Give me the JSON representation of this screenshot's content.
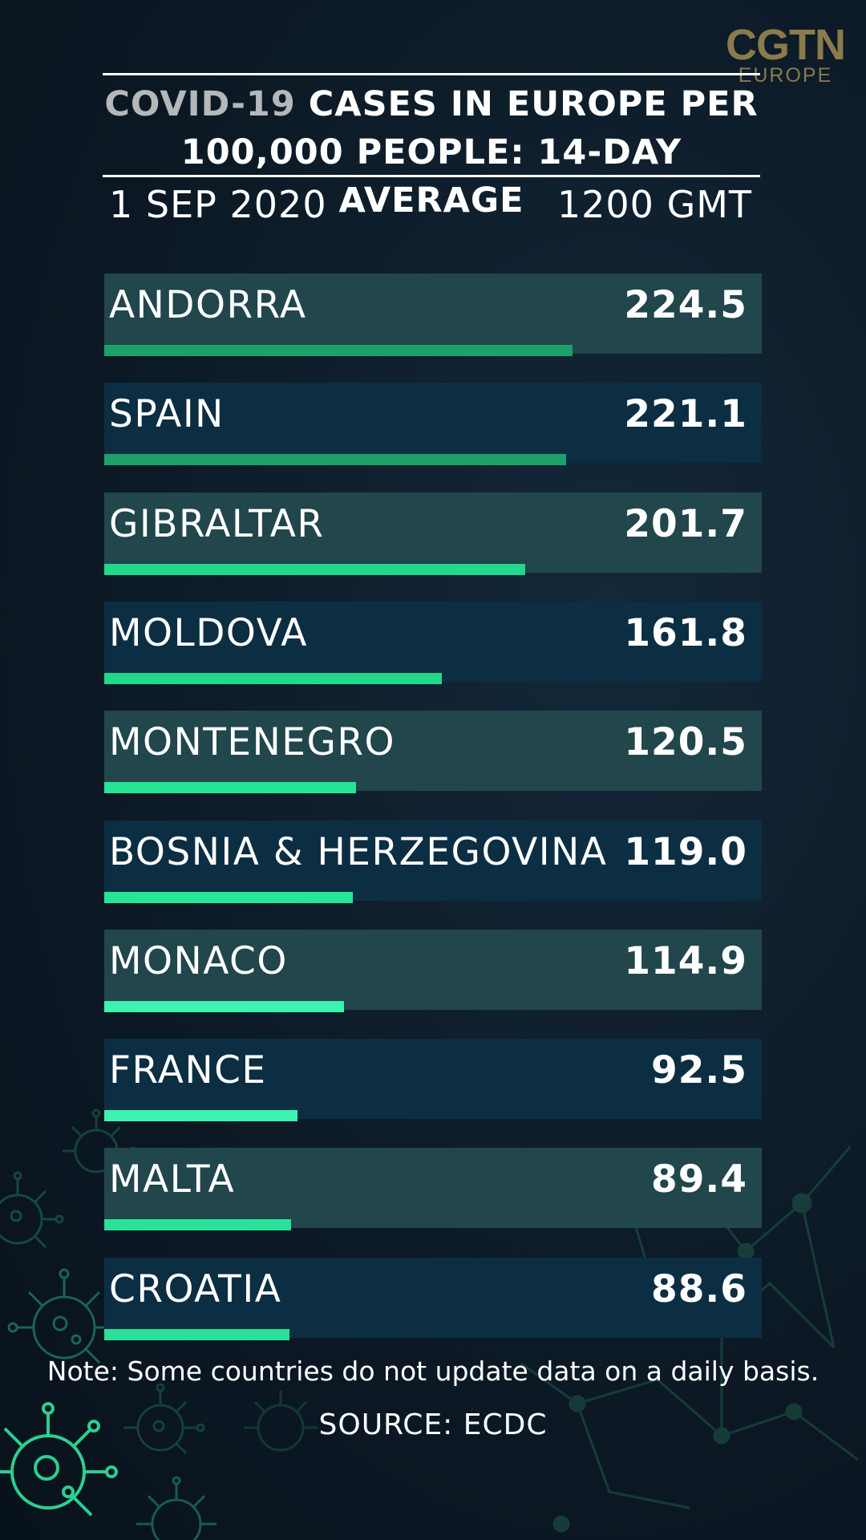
{
  "brand": {
    "main": "CGTN",
    "sub": "EUROPE"
  },
  "title": {
    "part1": "COVID-19",
    "part2": " CASES IN EUROPE PER",
    "line2": "100,000 PEOPLE: 14-DAY AVERAGE"
  },
  "date": "1 SEP 2020",
  "time": "1200 GMT",
  "chart_data": {
    "type": "bar",
    "orientation": "horizontal",
    "title": "COVID-19 CASES IN EUROPE PER 100,000 PEOPLE: 14-DAY AVERAGE",
    "categories": [
      "ANDORRA",
      "SPAIN",
      "GIBRALTAR",
      "MOLDOVA",
      "MONTENEGRO",
      "BOSNIA & HERZEGOVINA",
      "MONACO",
      "FRANCE",
      "MALTA",
      "CROATIA"
    ],
    "values": [
      224.5,
      221.1,
      201.7,
      161.8,
      120.5,
      119.0,
      114.9,
      92.5,
      89.4,
      88.6
    ],
    "value_labels": [
      "224.5",
      "221.1",
      "201.7",
      "161.8",
      "120.5",
      "119.0",
      "114.9",
      "92.5",
      "89.4",
      "88.6"
    ],
    "bar_colors": [
      "#1ea06a",
      "#1ea06a",
      "#22d88a",
      "#22d88a",
      "#26e595",
      "#26e595",
      "#3ef2b0",
      "#3ef2b0",
      "#2be098",
      "#2be098"
    ],
    "xlim": [
      0,
      315
    ]
  },
  "note": "Note: Some countries do not update data on a daily basis.",
  "source": "SOURCE: ECDC"
}
